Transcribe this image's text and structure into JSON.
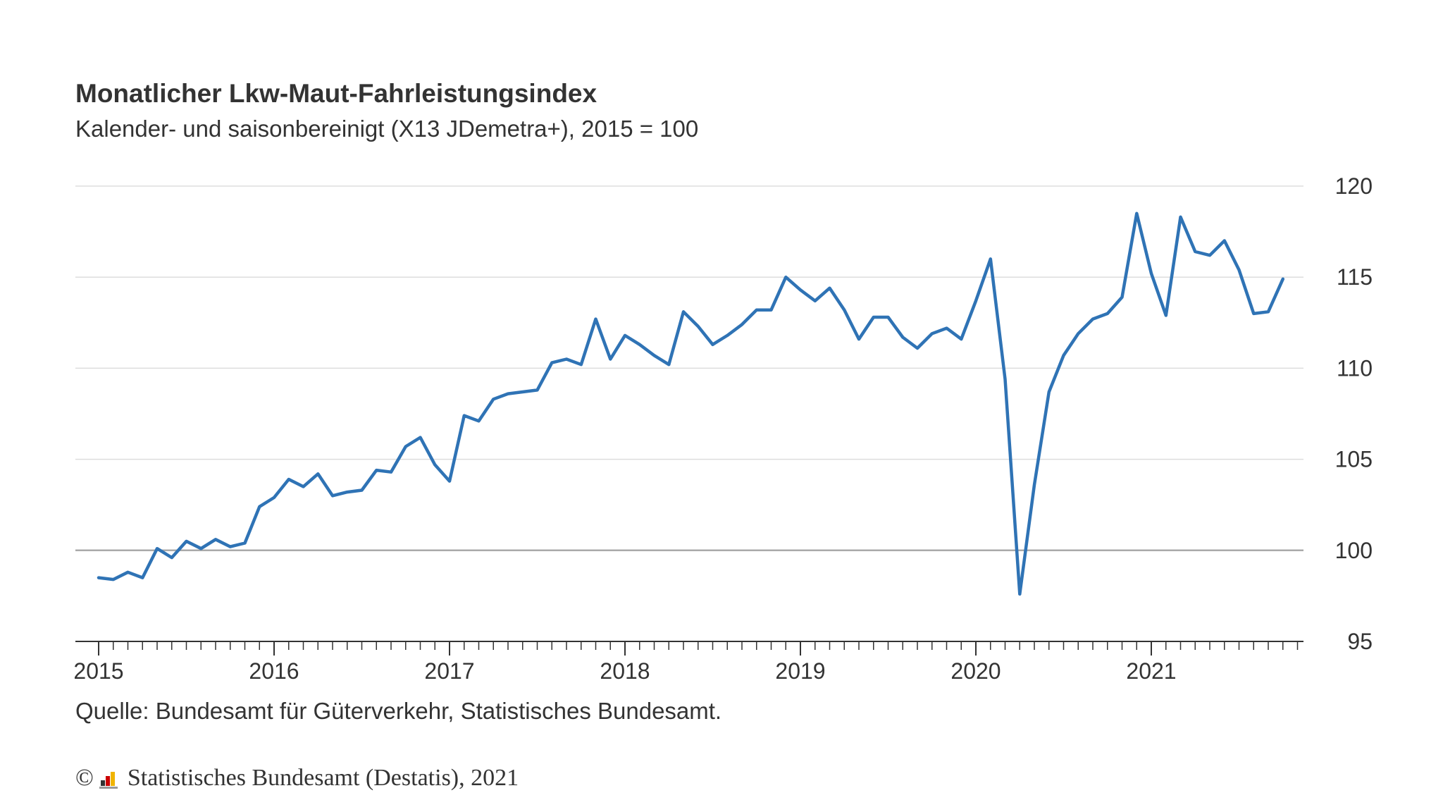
{
  "colors": {
    "series": "#2f73b5",
    "grid": "#dddddd",
    "baseline": "#aaaaaa",
    "axis": "#333333",
    "text": "#333333"
  },
  "chart_data": {
    "type": "line",
    "title": "Monatlicher Lkw-Maut-Fahrleistungsindex",
    "subtitle": "Kalender- und saisonbereinigt (X13 JDemetra+), 2015 = 100",
    "source": "Quelle: Bundesamt für Güterverkehr, Statistisches Bundesamt.",
    "x_start": "2015-01",
    "x_ticks": [
      "2015",
      "2016",
      "2017",
      "2018",
      "2019",
      "2020",
      "2021"
    ],
    "y_ticks": [
      "120",
      "115",
      "110",
      "105",
      "100",
      "95"
    ],
    "ylim": [
      95,
      120
    ],
    "reference_line": 100,
    "grid": true,
    "y_axis_position": "right",
    "series": [
      {
        "values": [
          98.5,
          98.4,
          98.8,
          98.5,
          100.1,
          99.6,
          100.5,
          100.1,
          100.6,
          100.2,
          100.4,
          102.4,
          102.9,
          103.9,
          103.5,
          104.2,
          103.0,
          103.2,
          103.3,
          104.4,
          104.3,
          105.7,
          106.2,
          104.7,
          103.8,
          107.4,
          107.1,
          108.3,
          108.6,
          108.7,
          108.8,
          110.3,
          110.5,
          110.2,
          112.7,
          110.5,
          111.8,
          111.3,
          110.7,
          110.2,
          113.1,
          112.3,
          111.3,
          111.8,
          112.4,
          113.2,
          113.2,
          115.0,
          114.3,
          113.7,
          114.4,
          113.2,
          111.6,
          112.8,
          112.8,
          111.7,
          111.1,
          111.9,
          112.2,
          111.6,
          113.7,
          116.0,
          109.4,
          97.6,
          103.6,
          108.7,
          110.7,
          111.9,
          112.7,
          113.0,
          113.9,
          118.5,
          115.2,
          112.9,
          118.3,
          116.4,
          116.2,
          117.0,
          115.4,
          113.0,
          113.1,
          114.9
        ]
      }
    ]
  },
  "footer": {
    "copyright_symbol": "©",
    "copyright_text": "Statistisches Bundesamt (Destatis), 2021"
  }
}
